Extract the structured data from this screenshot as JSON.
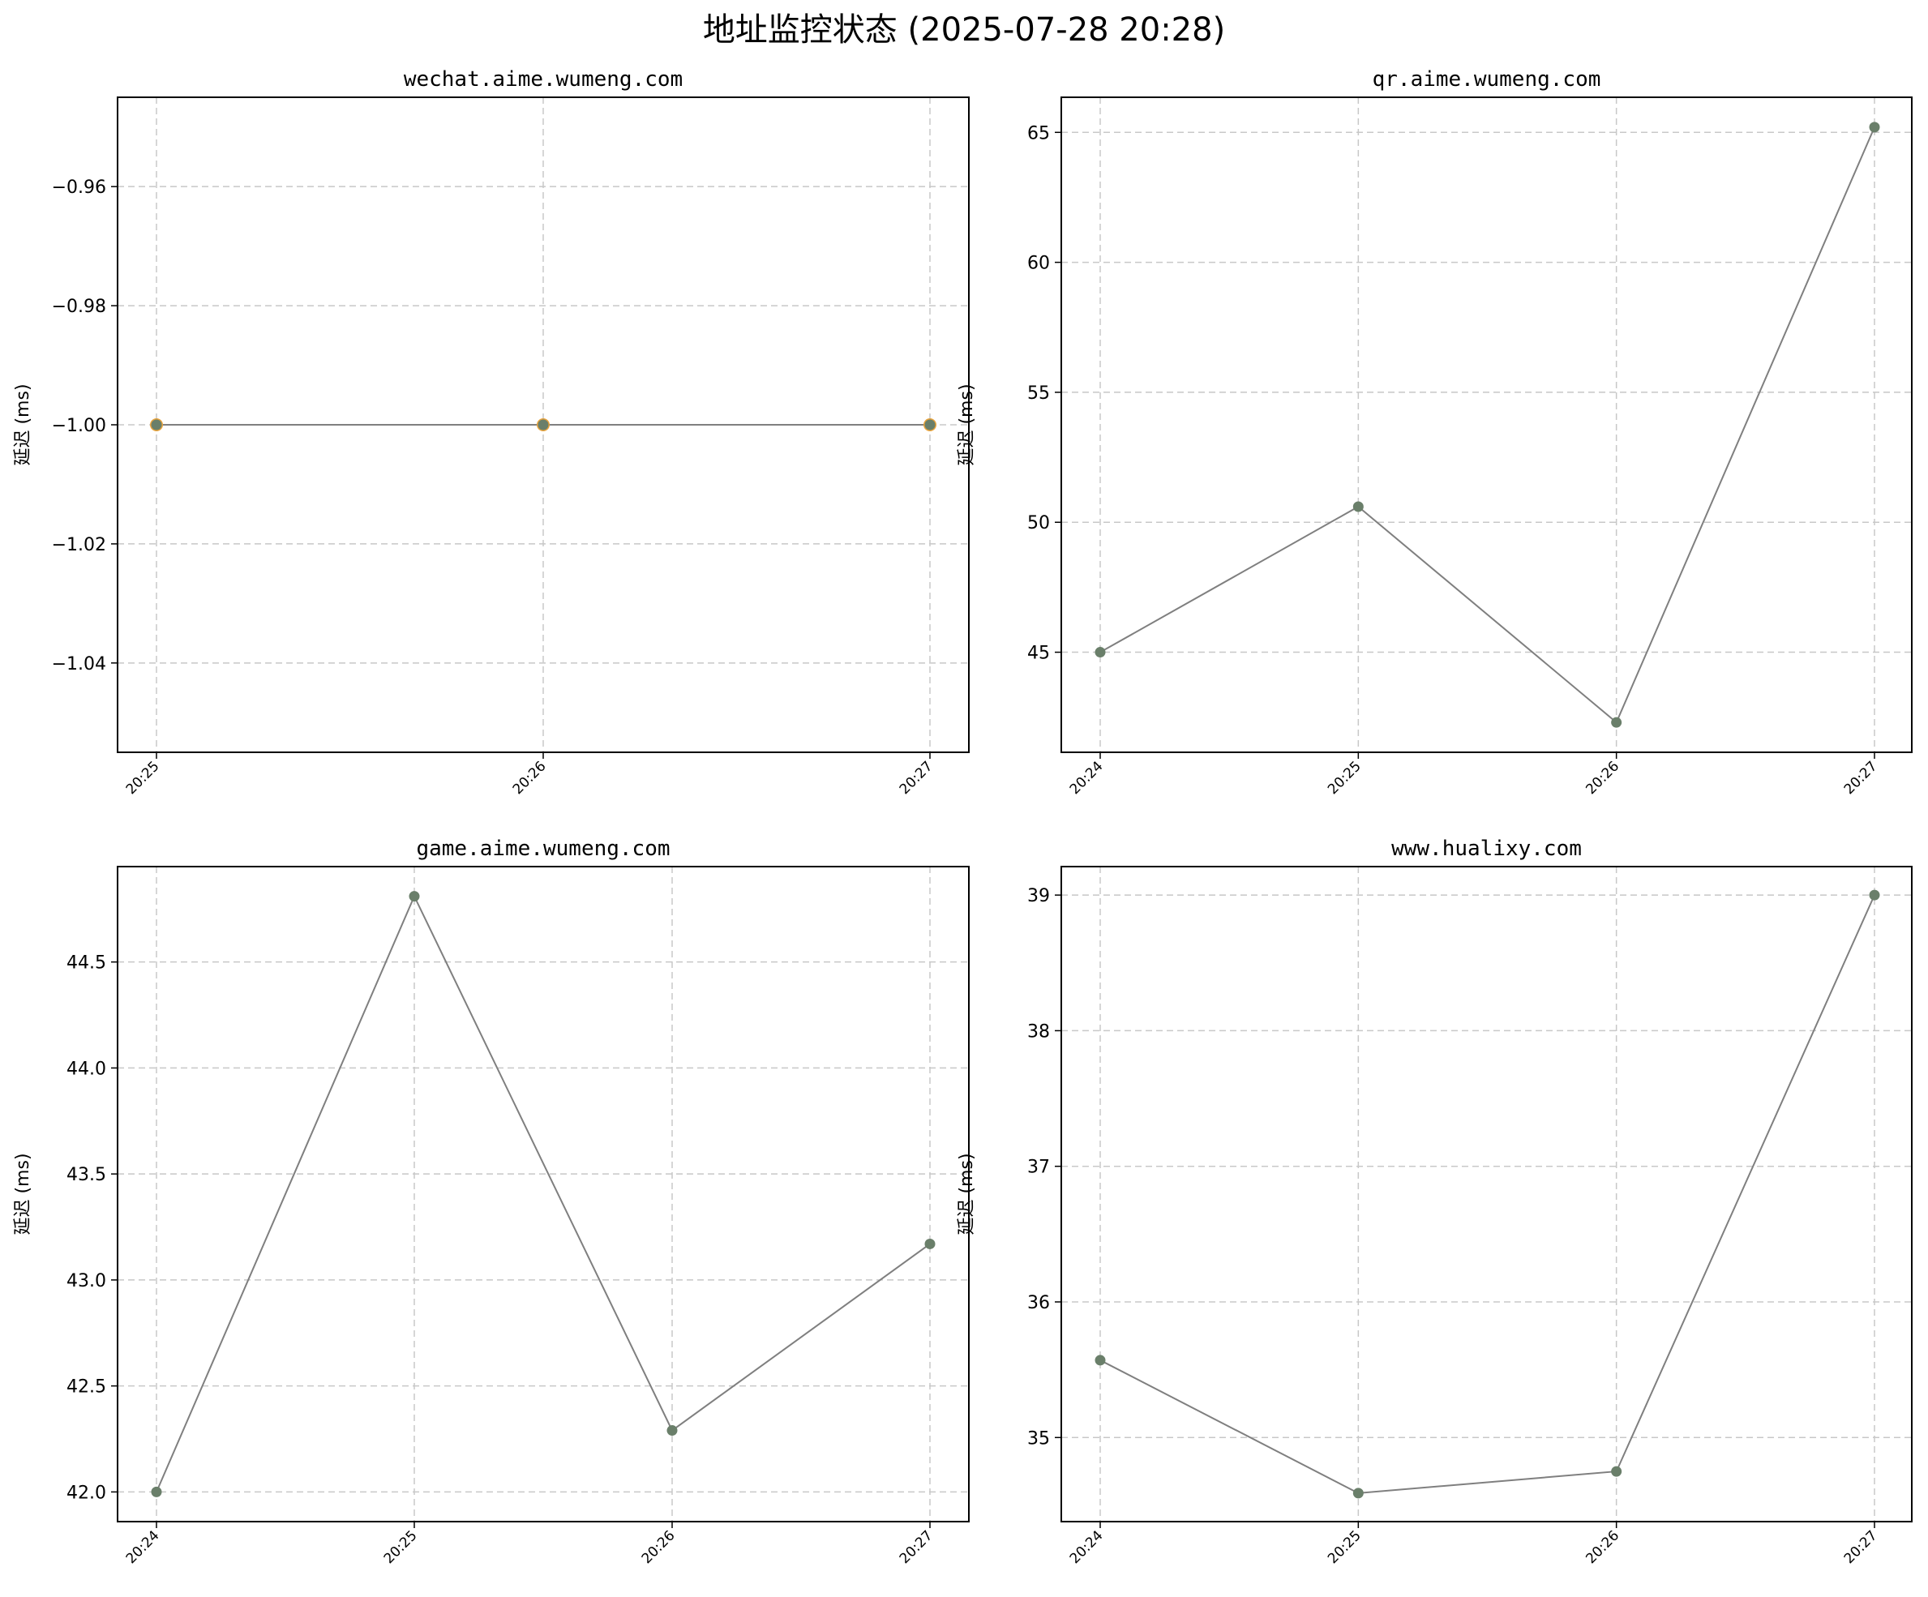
{
  "figure": {
    "title": "地址监控状态 (2025-07-28 20:28)"
  },
  "colors": {
    "line": "#7f7f7f",
    "marker": "#6a7f6a",
    "marker_error": "#e8a33c",
    "grid": "#c8c8c8",
    "axis": "#000000"
  },
  "chart_data": [
    {
      "type": "line",
      "title": "wechat.aime.wumeng.com",
      "ylabel": "延迟 (ms)",
      "xlabel": "",
      "x": [
        "20:25",
        "20:26",
        "20:27"
      ],
      "values": [
        -1.0,
        -1.0,
        -1.0
      ],
      "ylim": [
        -1.055,
        -0.945
      ],
      "yticks": [
        -0.96,
        -0.98,
        -1.0,
        -1.02,
        -1.04
      ],
      "ytick_labels": [
        "−0.96",
        "−0.98",
        "−1.00",
        "−1.02",
        "−1.04"
      ],
      "grid": true
    },
    {
      "type": "line",
      "title": "qr.aime.wumeng.com",
      "ylabel": "延迟 (ms)",
      "xlabel": "",
      "x": [
        "20:24",
        "20:25",
        "20:26",
        "20:27"
      ],
      "values": [
        45.0,
        50.6,
        42.3,
        65.2
      ],
      "ylim": [
        41.15,
        66.35
      ],
      "yticks": [
        45,
        50,
        55,
        60,
        65
      ],
      "ytick_labels": [
        "45",
        "50",
        "55",
        "60",
        "65"
      ],
      "grid": true
    },
    {
      "type": "line",
      "title": "game.aime.wumeng.com",
      "ylabel": "延迟 (ms)",
      "xlabel": "",
      "x": [
        "20:24",
        "20:25",
        "20:26",
        "20:27"
      ],
      "values": [
        42.0,
        44.81,
        42.29,
        43.17
      ],
      "ylim": [
        41.86,
        44.95
      ],
      "yticks": [
        42.0,
        42.5,
        43.0,
        43.5,
        44.0,
        44.5
      ],
      "ytick_labels": [
        "42.0",
        "42.5",
        "43.0",
        "43.5",
        "44.0",
        "44.5"
      ],
      "grid": true
    },
    {
      "type": "line",
      "title": "www.hualixy.com",
      "ylabel": "延迟 (ms)",
      "xlabel": "",
      "x": [
        "20:24",
        "20:25",
        "20:26",
        "20:27"
      ],
      "values": [
        35.57,
        34.59,
        34.75,
        39.0
      ],
      "ylim": [
        34.38,
        39.21
      ],
      "yticks": [
        35,
        36,
        37,
        38,
        39
      ],
      "ytick_labels": [
        "35",
        "36",
        "37",
        "38",
        "39"
      ],
      "grid": true
    }
  ]
}
